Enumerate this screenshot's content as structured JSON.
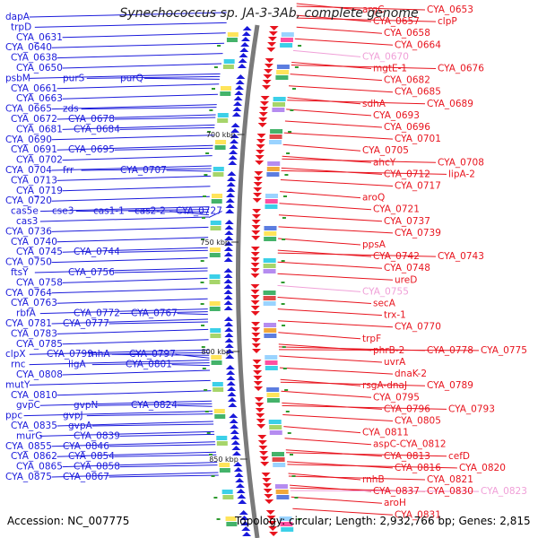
{
  "title": "Synechococcus sp. JA-3-3Ab, complete genome",
  "footer": {
    "accession": "Accession: NC_007775",
    "info": "Topology: circular; Length: 2,932,766 bp; Genes: 2,815"
  },
  "colors": {
    "left_strand": "#1a1adb",
    "right_strand": "#e8141e",
    "pseudo": "#f0a0d8",
    "backbone": "#7a7a7a",
    "tick": "#2e9a2e"
  },
  "scale_marks": [
    "700 kbp",
    "750 kbp",
    "800 kbp",
    "850 kbp"
  ],
  "left_genes": [
    {
      "label": "dapA",
      "row": 0
    },
    {
      "label": "trpD",
      "row": 1
    },
    {
      "label": "CYA_0631",
      "row": 2
    },
    {
      "label": "CYA_0640",
      "row": 3
    },
    {
      "label": "CYA_0638",
      "row": 4
    },
    {
      "label": "CYA_0650",
      "row": 5
    },
    {
      "label": "psbM",
      "row": 6
    },
    {
      "label": "purS",
      "row": 6
    },
    {
      "label": "purQ",
      "row": 6
    },
    {
      "label": "CYA_0661",
      "row": 7
    },
    {
      "label": "CYA_0663",
      "row": 8
    },
    {
      "label": "CYA_0665",
      "row": 9
    },
    {
      "label": "zds",
      "row": 9
    },
    {
      "label": "CYA_0672",
      "row": 10
    },
    {
      "label": "CYA_0678",
      "row": 10
    },
    {
      "label": "CYA_0681",
      "row": 11
    },
    {
      "label": "CYA_0684",
      "row": 11
    },
    {
      "label": "CYA_0690",
      "row": 12
    },
    {
      "label": "CYA_0691",
      "row": 13
    },
    {
      "label": "CYA_0695",
      "row": 13
    },
    {
      "label": "CYA_0702",
      "row": 14
    },
    {
      "label": "CYA_0704",
      "row": 15
    },
    {
      "label": "frr",
      "row": 15
    },
    {
      "label": "CYA_0707",
      "row": 15
    },
    {
      "label": "CYA_0713",
      "row": 16
    },
    {
      "label": "CYA_0719",
      "row": 17
    },
    {
      "label": "CYA_0720",
      "row": 18
    },
    {
      "label": "cas5e",
      "row": 19
    },
    {
      "label": "cse3",
      "row": 19
    },
    {
      "label": "cas1-1",
      "row": 19
    },
    {
      "label": "cas2-2",
      "row": 19
    },
    {
      "label": "CYA_0727",
      "row": 19
    },
    {
      "label": "cas3",
      "row": 20
    },
    {
      "label": "CYA_0736",
      "row": 21
    },
    {
      "label": "CYA_0740",
      "row": 22
    },
    {
      "label": "CYA_0745",
      "row": 23
    },
    {
      "label": "CYA_0744",
      "row": 23
    },
    {
      "label": "CYA_0750",
      "row": 24
    },
    {
      "label": "ftsY",
      "row": 25
    },
    {
      "label": "CYA_0756",
      "row": 25
    },
    {
      "label": "CYA_0758",
      "row": 26
    },
    {
      "label": "CYA_0764",
      "row": 27
    },
    {
      "label": "CYA_0763",
      "row": 28
    },
    {
      "label": "rbfA",
      "row": 29
    },
    {
      "label": "CYA_0772",
      "row": 29
    },
    {
      "label": "CYA_0767",
      "row": 29
    },
    {
      "label": "CYA_0781",
      "row": 30
    },
    {
      "label": "CYA_0777",
      "row": 30
    },
    {
      "label": "CYA_0783",
      "row": 31
    },
    {
      "label": "CYA_0785",
      "row": 32
    },
    {
      "label": "clpX",
      "row": 33
    },
    {
      "label": "CYA_0799",
      "row": 33
    },
    {
      "label": "rnhA",
      "row": 33
    },
    {
      "label": "CYA_0797",
      "row": 33
    },
    {
      "label": "rnc",
      "row": 34
    },
    {
      "label": "ligA",
      "row": 34
    },
    {
      "label": "CYA_0801",
      "row": 34
    },
    {
      "label": "CYA_0808",
      "row": 35
    },
    {
      "label": "mutY",
      "row": 36
    },
    {
      "label": "CYA_0810",
      "row": 37
    },
    {
      "label": "gvpC",
      "row": 38
    },
    {
      "label": "gvpN",
      "row": 38
    },
    {
      "label": "CYA_0824",
      "row": 38
    },
    {
      "label": "ppc",
      "row": 39
    },
    {
      "label": "gvpJ",
      "row": 39
    },
    {
      "label": "CYA_0835",
      "row": 40
    },
    {
      "label": "gvpA",
      "row": 40
    },
    {
      "label": "murG",
      "row": 41
    },
    {
      "label": "CYA_0839",
      "row": 41
    },
    {
      "label": "CYA_0855",
      "row": 42
    },
    {
      "label": "CYA_0846",
      "row": 42
    },
    {
      "label": "CYA_0862",
      "row": 43
    },
    {
      "label": "CYA_0854",
      "row": 43
    },
    {
      "label": "CYA_0865",
      "row": 44
    },
    {
      "label": "CYA_0858",
      "row": 44
    },
    {
      "label": "CYA_0875",
      "row": 45
    },
    {
      "label": "CYA_0867",
      "row": 45
    }
  ],
  "right_genes": [
    {
      "label": "argC",
      "row": 0,
      "pseudo": false
    },
    {
      "label": "CYA_0653",
      "row": 0,
      "pseudo": false
    },
    {
      "label": "CYA_0657",
      "row": 1,
      "pseudo": false
    },
    {
      "label": "clpP",
      "row": 1,
      "pseudo": false
    },
    {
      "label": "CYA_0658",
      "row": 2,
      "pseudo": false
    },
    {
      "label": "CYA_0664",
      "row": 3,
      "pseudo": false
    },
    {
      "label": "CYA_0670",
      "row": 4,
      "pseudo": true
    },
    {
      "label": "mgtE-1",
      "row": 5,
      "pseudo": false
    },
    {
      "label": "CYA_0676",
      "row": 5,
      "pseudo": false
    },
    {
      "label": "CYA_0682",
      "row": 6,
      "pseudo": false
    },
    {
      "label": "CYA_0685",
      "row": 7,
      "pseudo": false
    },
    {
      "label": "sdhA",
      "row": 8,
      "pseudo": false
    },
    {
      "label": "CYA_0689",
      "row": 8,
      "pseudo": false
    },
    {
      "label": "CYA_0693",
      "row": 9,
      "pseudo": false
    },
    {
      "label": "CYA_0696",
      "row": 10,
      "pseudo": false
    },
    {
      "label": "CYA_0701",
      "row": 11,
      "pseudo": false
    },
    {
      "label": "CYA_0705",
      "row": 12,
      "pseudo": false
    },
    {
      "label": "ahcY",
      "row": 13,
      "pseudo": false
    },
    {
      "label": "CYA_0708",
      "row": 13,
      "pseudo": false
    },
    {
      "label": "CYA_0712",
      "row": 14,
      "pseudo": false
    },
    {
      "label": "lipA-2",
      "row": 14,
      "pseudo": false
    },
    {
      "label": "CYA_0717",
      "row": 15,
      "pseudo": false
    },
    {
      "label": "aroQ",
      "row": 16,
      "pseudo": false
    },
    {
      "label": "CYA_0721",
      "row": 17,
      "pseudo": false
    },
    {
      "label": "CYA_0737",
      "row": 18,
      "pseudo": false
    },
    {
      "label": "CYA_0739",
      "row": 19,
      "pseudo": false
    },
    {
      "label": "ppsA",
      "row": 20,
      "pseudo": false
    },
    {
      "label": "CYA_0742",
      "row": 21,
      "pseudo": false
    },
    {
      "label": "CYA_0743",
      "row": 21,
      "pseudo": false
    },
    {
      "label": "CYA_0748",
      "row": 22,
      "pseudo": false
    },
    {
      "label": "ureD",
      "row": 23,
      "pseudo": false
    },
    {
      "label": "CYA_0755",
      "row": 24,
      "pseudo": true
    },
    {
      "label": "secA",
      "row": 25,
      "pseudo": false
    },
    {
      "label": "trx-1",
      "row": 26,
      "pseudo": false
    },
    {
      "label": "CYA_0770",
      "row": 27,
      "pseudo": false
    },
    {
      "label": "trpF",
      "row": 28,
      "pseudo": false
    },
    {
      "label": "phrB-2",
      "row": 29,
      "pseudo": false
    },
    {
      "label": "CYA_0778",
      "row": 29,
      "pseudo": false
    },
    {
      "label": "CYA_0775",
      "row": 29,
      "pseudo": false
    },
    {
      "label": "uvrA",
      "row": 30,
      "pseudo": false
    },
    {
      "label": "dnaK-2",
      "row": 31,
      "pseudo": false
    },
    {
      "label": "rsgA-dnaJ",
      "row": 32,
      "pseudo": false
    },
    {
      "label": "CYA_0789",
      "row": 32,
      "pseudo": false
    },
    {
      "label": "CYA_0795",
      "row": 33,
      "pseudo": false
    },
    {
      "label": "CYA_0796",
      "row": 34,
      "pseudo": false
    },
    {
      "label": "CYA_0793",
      "row": 34,
      "pseudo": false
    },
    {
      "label": "CYA_0805",
      "row": 35,
      "pseudo": false
    },
    {
      "label": "CYA_0811",
      "row": 36,
      "pseudo": false
    },
    {
      "label": "aspC-CYA_0812",
      "row": 37,
      "pseudo": false
    },
    {
      "label": "CYA_0813",
      "row": 38,
      "pseudo": false
    },
    {
      "label": "cefD",
      "row": 38,
      "pseudo": false
    },
    {
      "label": "CYA_0816",
      "row": 39,
      "pseudo": false
    },
    {
      "label": "CYA_0820",
      "row": 39,
      "pseudo": false
    },
    {
      "label": "rnhB",
      "row": 40,
      "pseudo": false
    },
    {
      "label": "CYA_0821",
      "row": 40,
      "pseudo": false
    },
    {
      "label": "CYA_0837",
      "row": 41,
      "pseudo": false
    },
    {
      "label": "CYA_0830",
      "row": 41,
      "pseudo": false
    },
    {
      "label": "CYA_0823",
      "row": 41,
      "pseudo": true
    },
    {
      "label": "aroH",
      "row": 42,
      "pseudo": false
    },
    {
      "label": "CYA_0831",
      "row": 43,
      "pseudo": false
    }
  ]
}
